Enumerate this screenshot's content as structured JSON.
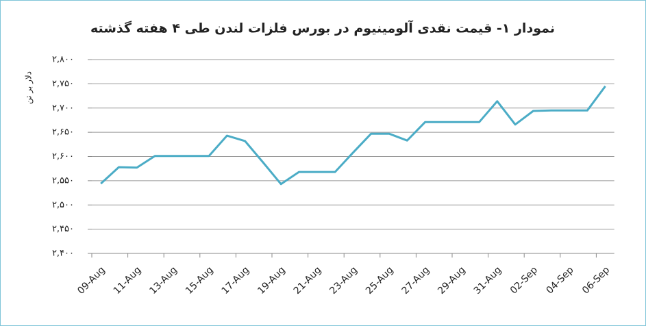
{
  "chart_data": {
    "type": "line",
    "title": "نمودار ۱- قیمت نقدی آلومینیوم در بورس فلزات لندن طی ۴ هفته گذشته",
    "y_label": "دلار بر تن",
    "categories": [
      "09-Aug",
      null,
      "11-Aug",
      null,
      "13-Aug",
      null,
      "15-Aug",
      null,
      "17-Aug",
      null,
      "19-Aug",
      null,
      "21-Aug",
      null,
      "23-Aug",
      null,
      "25-Aug",
      null,
      "27-Aug",
      null,
      "29-Aug",
      null,
      "31-Aug",
      null,
      "02-Sep",
      null,
      "04-Sep",
      null,
      "06-Sep"
    ],
    "values": [
      2544,
      2578,
      2577,
      2601,
      2601,
      2601,
      2601,
      2643,
      2632,
      2588,
      2543,
      2568,
      2568,
      2568,
      2608,
      2647,
      2647,
      2633,
      2671,
      2671,
      2671,
      2671,
      2714,
      2666,
      2694,
      2695,
      2695,
      2695,
      2745
    ],
    "color": "#4bacc6",
    "ylim": [
      2400,
      2800
    ],
    "yticks": [
      {
        "value": 2400,
        "label": "۲,۴۰۰"
      },
      {
        "value": 2450,
        "label": "۲,۴۵۰"
      },
      {
        "value": 2500,
        "label": "۲,۵۰۰"
      },
      {
        "value": 2550,
        "label": "۲,۵۵۰"
      },
      {
        "value": 2600,
        "label": "۲,۶۰۰"
      },
      {
        "value": 2650,
        "label": "۲,۶۵۰"
      },
      {
        "value": 2700,
        "label": "۲,۷۰۰"
      },
      {
        "value": 2750,
        "label": "۲,۷۵۰"
      },
      {
        "value": 2800,
        "label": "۲,۸۰۰"
      }
    ],
    "grid": true
  }
}
